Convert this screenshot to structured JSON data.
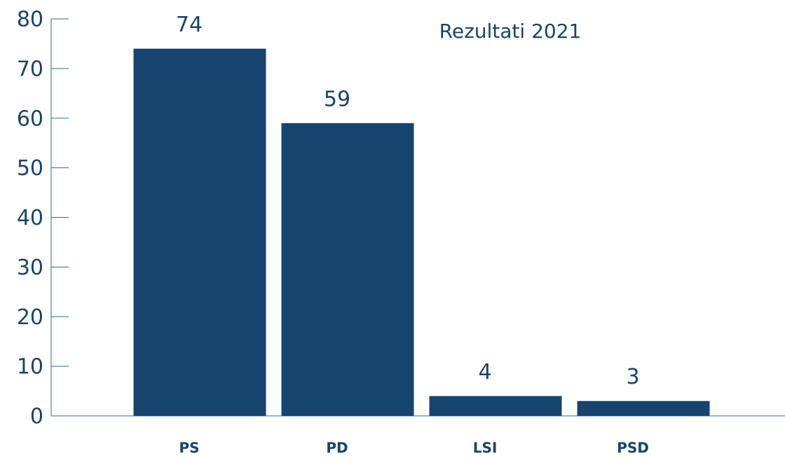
{
  "chart_data": {
    "type": "bar",
    "title": "Rezultati 2021",
    "categories": [
      "PS",
      "PD",
      "LSI",
      "PSD"
    ],
    "values": [
      74,
      59,
      4,
      3
    ],
    "color": "#17446f",
    "ylim": [
      0,
      80
    ],
    "yticks": [
      0,
      10,
      20,
      30,
      40,
      50,
      60,
      70,
      80
    ],
    "grid": false
  }
}
